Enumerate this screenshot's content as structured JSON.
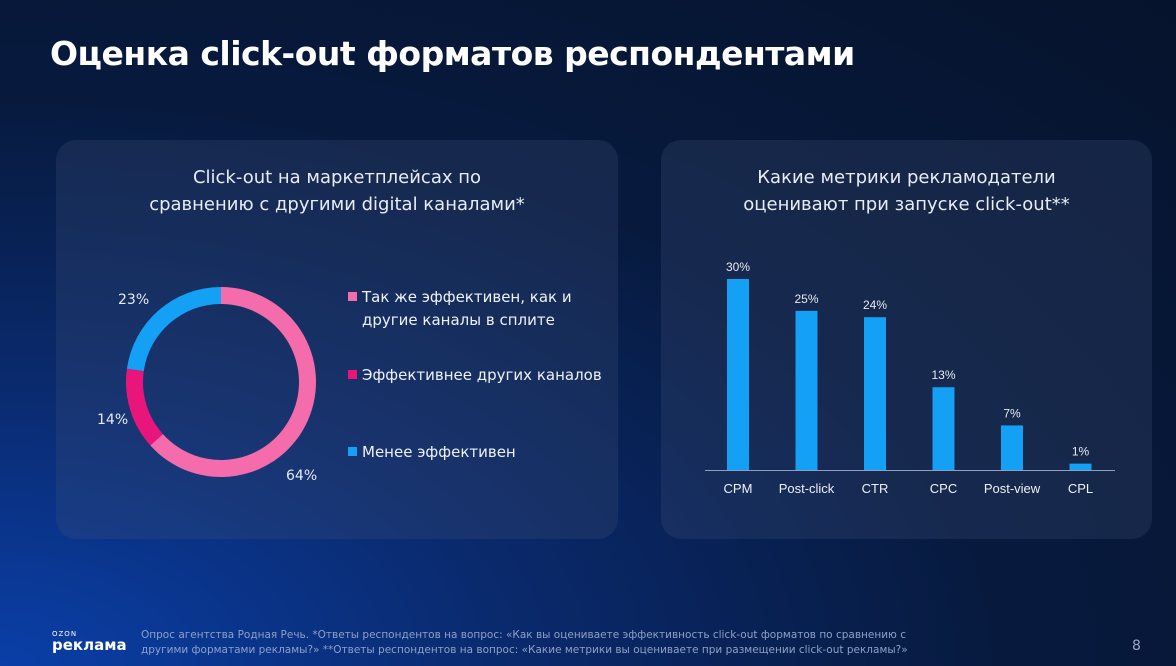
{
  "title": "Оценка click-out форматов респондентами",
  "chart_data": [
    {
      "type": "pie",
      "variant": "donut",
      "title": [
        "Click-out на маркетплейсах по",
        "сравнению с другими digital каналами*"
      ],
      "slices": [
        {
          "label": "Так же эффективен, как и другие каналы в сплите",
          "label_lines": [
            "Так же эффективен, как и",
            "другие каналы в сплите"
          ],
          "value": 64,
          "value_label": "64%",
          "color": "#f56cac"
        },
        {
          "label": "Эффективнее других каналов",
          "label_lines": [
            "Эффективнее других каналов"
          ],
          "value": 14,
          "value_label": "14%",
          "color": "#e8157a"
        },
        {
          "label": "Менее эффективен",
          "label_lines": [
            "Менее эффективен"
          ],
          "value": 23,
          "value_label": "23%",
          "color": "#14a0f5"
        }
      ],
      "legend": "right"
    },
    {
      "type": "bar",
      "title": [
        "Какие метрики рекламодатели",
        "оценивают при запуске click-out**"
      ],
      "categories": [
        "CPM",
        "Post-click",
        "CTR",
        "CPC",
        "Post-view",
        "CPL"
      ],
      "values": [
        30,
        25,
        24,
        13,
        7,
        1
      ],
      "value_labels": [
        "30%",
        "25%",
        "24%",
        "13%",
        "7%",
        "1%"
      ],
      "ylim": [
        0,
        30
      ],
      "color": "#14a0f5",
      "grid": false
    }
  ],
  "footer": {
    "logo_small": "OZON",
    "logo_big": "реклама",
    "note_lines": [
      "Опрос агентства Родная Речь. *Ответы респондентов на вопрос: «Как вы оцениваете эффективность click-out форматов по сравнению с",
      "другими форматами рекламы?» **Ответы респондентов на вопрос: «Какие метрики вы оцениваете при размещении click-out рекламы?»"
    ],
    "page": "8"
  }
}
